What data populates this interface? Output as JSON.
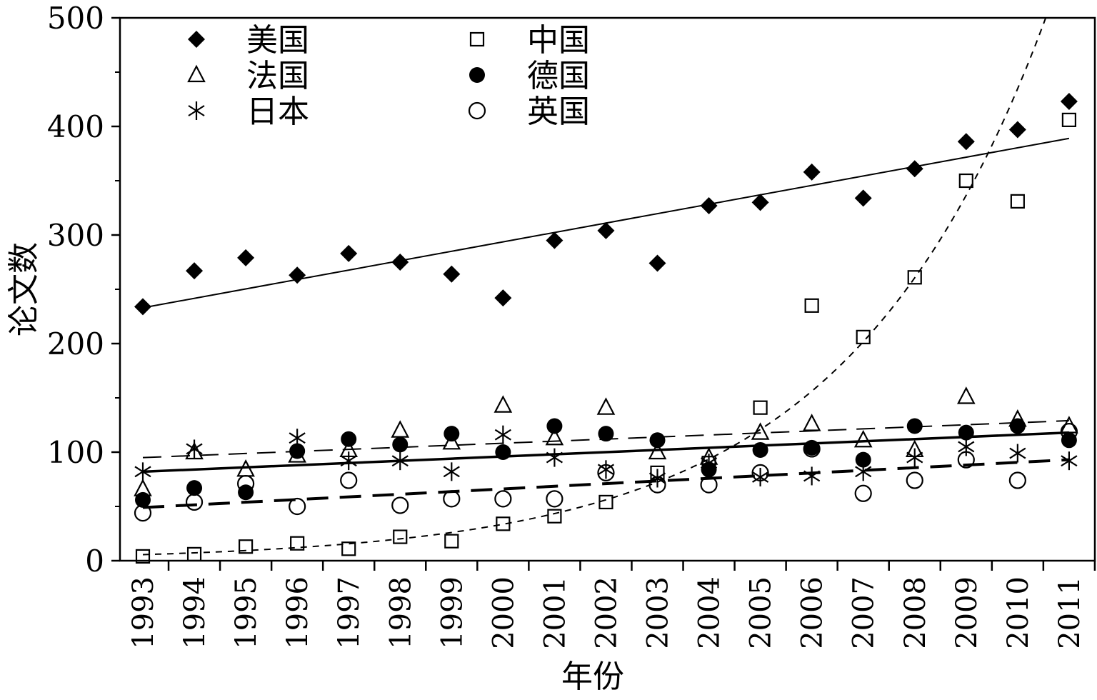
{
  "chart_data": {
    "type": "scatter",
    "title": "",
    "xlabel": "年份",
    "ylabel": "论文数",
    "ylim": [
      0,
      500
    ],
    "yticks": [
      0,
      100,
      200,
      300,
      400,
      500
    ],
    "x": [
      1993,
      1994,
      1995,
      1996,
      1997,
      1998,
      1999,
      2000,
      2001,
      2002,
      2003,
      2004,
      2005,
      2006,
      2007,
      2008,
      2009,
      2010,
      2011
    ],
    "xtick_labels": [
      "1993",
      "1994",
      "1995",
      "1996",
      "1997",
      "1998",
      "1999",
      "2000",
      "2001",
      "2002",
      "2003",
      "2004",
      "2005",
      "2006",
      "2007",
      "2008",
      "2009",
      "2010",
      "2011"
    ],
    "series": [
      {
        "name": "美国",
        "marker": "diamond",
        "values": [
          234,
          267,
          279,
          263,
          283,
          275,
          264,
          242,
          295,
          304,
          274,
          327,
          330,
          358,
          334,
          361,
          386,
          397,
          423
        ],
        "trend": {
          "type": "linear",
          "start": 233,
          "end": 389,
          "style": "solid"
        }
      },
      {
        "name": "中国",
        "marker": "square",
        "values": [
          4,
          6,
          13,
          16,
          11,
          22,
          18,
          34,
          41,
          54,
          81,
          90,
          141,
          235,
          206,
          261,
          350,
          331,
          406
        ],
        "trend": {
          "type": "exponential",
          "a": 5.6,
          "b": 0.256,
          "style": "dotted"
        }
      },
      {
        "name": "法国",
        "marker": "triangle",
        "values": [
          66,
          100,
          84,
          97,
          102,
          120,
          109,
          143,
          113,
          141,
          100,
          95,
          118,
          126,
          111,
          102,
          151,
          130,
          124
        ],
        "trend": {
          "type": "linear",
          "start": 95,
          "end": 129,
          "style": "long-dash"
        }
      },
      {
        "name": "德国",
        "marker": "filled-circle",
        "values": [
          56,
          67,
          63,
          101,
          112,
          107,
          117,
          100,
          124,
          117,
          111,
          84,
          102,
          104,
          93,
          124,
          118,
          124,
          111
        ],
        "trend": {
          "type": "linear",
          "start": 82,
          "end": 118,
          "style": "thick-solid"
        }
      },
      {
        "name": "日本",
        "marker": "asterisk",
        "values": [
          82,
          103,
          null,
          113,
          92,
          92,
          82,
          116,
          95,
          84,
          76,
          90,
          77,
          78,
          82,
          95,
          105,
          99,
          92
        ],
        "trend": null
      },
      {
        "name": "英国",
        "marker": "open-circle",
        "values": [
          44,
          54,
          71,
          50,
          74,
          51,
          57,
          57,
          57,
          81,
          70,
          70,
          81,
          103,
          62,
          74,
          93,
          74,
          119
        ],
        "trend": {
          "type": "linear",
          "start": 49,
          "end": 93,
          "style": "thick-dash"
        }
      }
    ],
    "legend_position": "top-left",
    "grid": false
  }
}
